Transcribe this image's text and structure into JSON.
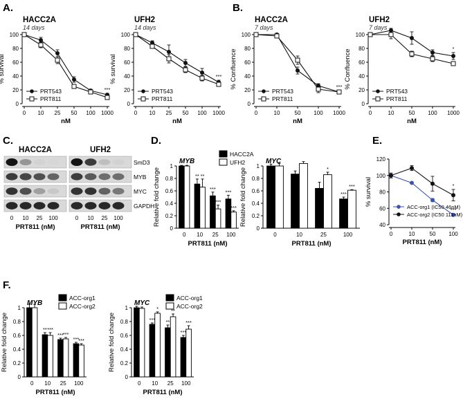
{
  "figure_labels": [
    "A.",
    "B.",
    "C.",
    "D.",
    "E.",
    "F."
  ],
  "chart_data": [
    {
      "id": "A1",
      "type": "line",
      "title": "HACC2A",
      "subtitle": "14 days",
      "xlabel": "nM",
      "ylabel": "% survival",
      "categories": [
        "0",
        "10",
        "25",
        "50",
        "100",
        "1000"
      ],
      "ylim": [
        0,
        100
      ],
      "yticks": [
        0,
        20,
        40,
        60,
        80,
        100
      ],
      "series": [
        {
          "name": "PRT543",
          "marker": "circle",
          "values": [
            100,
            92,
            73,
            35,
            19,
            13
          ],
          "err": [
            2,
            4,
            5,
            4,
            2,
            2
          ]
        },
        {
          "name": "PRT811",
          "marker": "square",
          "values": [
            100,
            85,
            63,
            25,
            17,
            9
          ],
          "err": [
            2,
            4,
            5,
            3,
            2,
            2
          ]
        }
      ],
      "annotations": [
        {
          "category": "1000",
          "text": "***"
        }
      ]
    },
    {
      "id": "A2",
      "type": "line",
      "title": "UFH2",
      "subtitle": "14 days",
      "xlabel": "nM",
      "ylabel": "% survival",
      "categories": [
        "0",
        "10",
        "25",
        "50",
        "100",
        "1000"
      ],
      "ylim": [
        0,
        100
      ],
      "yticks": [
        0,
        20,
        40,
        60,
        80,
        100
      ],
      "series": [
        {
          "name": "PRT543",
          "marker": "circle",
          "values": [
            100,
            88,
            75,
            59,
            45,
            31
          ],
          "err": [
            2,
            3,
            10,
            5,
            6,
            3
          ]
        },
        {
          "name": "PRT811",
          "marker": "square",
          "values": [
            100,
            83,
            65,
            49,
            37,
            28
          ],
          "err": [
            2,
            3,
            6,
            4,
            4,
            3
          ]
        }
      ],
      "annotations": [
        {
          "category": "1000",
          "text": "***"
        }
      ]
    },
    {
      "id": "B1",
      "type": "line",
      "title": "HACC2A",
      "subtitle": "7 days",
      "xlabel": "nM",
      "ylabel": "% Confluence",
      "categories": [
        "0",
        "10",
        "50",
        "100",
        "1000"
      ],
      "ylim": [
        0,
        100
      ],
      "yticks": [
        0,
        20,
        40,
        60,
        80,
        100
      ],
      "series": [
        {
          "name": "PRT543",
          "marker": "circle",
          "values": [
            100,
            100,
            48,
            26,
            17
          ],
          "err": [
            2,
            2,
            5,
            3,
            2
          ]
        },
        {
          "name": "PRT811",
          "marker": "square",
          "values": [
            100,
            98,
            63,
            21,
            17
          ],
          "err": [
            2,
            2,
            6,
            5,
            2
          ]
        }
      ],
      "annotations": [
        {
          "category": "1000",
          "text": "***"
        }
      ]
    },
    {
      "id": "B2",
      "type": "line",
      "title": "UFH2",
      "subtitle": "7 days",
      "xlabel": "nM",
      "ylabel": "% Confluence",
      "categories": [
        "0",
        "10",
        "50",
        "100",
        "1000"
      ],
      "ylim": [
        0,
        100
      ],
      "yticks": [
        0,
        20,
        40,
        60,
        80,
        100
      ],
      "series": [
        {
          "name": "PRT543",
          "marker": "circle",
          "values": [
            100,
            106,
            95,
            74,
            69
          ],
          "err": [
            2,
            3,
            9,
            4,
            5
          ]
        },
        {
          "name": "PRT811",
          "marker": "square",
          "values": [
            100,
            100,
            72,
            65,
            58
          ],
          "err": [
            2,
            6,
            4,
            4,
            3
          ]
        }
      ],
      "annotations": [
        {
          "category": "1000",
          "text": "*"
        }
      ]
    },
    {
      "id": "D1",
      "type": "bar",
      "gene": "MYB",
      "xlabel": "PRT811 (nM)",
      "ylabel": "Relative fold change",
      "categories": [
        "0",
        "10",
        "25",
        "100"
      ],
      "ylim": [
        0,
        1.0
      ],
      "yticks": [
        0,
        0.2,
        0.4,
        0.6,
        0.8,
        1.0
      ],
      "series": [
        {
          "name": "HACC2A",
          "fill": "black",
          "values": [
            1.0,
            0.71,
            0.52,
            0.47
          ],
          "err": [
            0.01,
            0.08,
            0.06,
            0.06
          ]
        },
        {
          "name": "UFH2",
          "fill": "white",
          "values": [
            1.0,
            0.66,
            0.31,
            0.26
          ],
          "err": [
            0.01,
            0.13,
            0.06,
            0.02
          ]
        }
      ],
      "annotations": [
        {
          "category": "10",
          "series": 0,
          "text": "**"
        },
        {
          "category": "10",
          "series": 1,
          "text": "**"
        },
        {
          "category": "25",
          "series": 0,
          "text": "***"
        },
        {
          "category": "25",
          "series": 1,
          "text": "***"
        },
        {
          "category": "100",
          "series": 0,
          "text": "***"
        },
        {
          "category": "100",
          "series": 1,
          "text": "***"
        }
      ]
    },
    {
      "id": "D2",
      "type": "bar",
      "gene": "MYC",
      "xlabel": "PRT811 (nM)",
      "ylabel": "Relative fold change",
      "categories": [
        "0",
        "10",
        "25",
        "100"
      ],
      "ylim": [
        0,
        1.0
      ],
      "yticks": [
        0,
        0.2,
        0.4,
        0.6,
        0.8,
        1.0
      ],
      "series": [
        {
          "name": "HACC2A",
          "fill": "black",
          "values": [
            1.0,
            0.87,
            0.64,
            0.47
          ],
          "err": [
            0.03,
            0.05,
            0.1,
            0.03
          ]
        },
        {
          "name": "UFH2",
          "fill": "white",
          "values": [
            1.0,
            1.04,
            0.86,
            0.61
          ],
          "err": [
            0.04,
            0.03,
            0.04,
            0.01
          ]
        }
      ],
      "annotations": [
        {
          "category": "25",
          "series": 1,
          "text": "*"
        },
        {
          "category": "100",
          "series": 0,
          "text": "***"
        },
        {
          "category": "100",
          "series": 1,
          "text": "***"
        }
      ]
    },
    {
      "id": "E",
      "type": "line",
      "xlabel": "PRT811 (nM)",
      "ylabel": "% survival",
      "categories": [
        "0",
        "10",
        "50",
        "100"
      ],
      "ylim": [
        40,
        120
      ],
      "yticks": [
        40,
        60,
        80,
        100,
        120
      ],
      "series": [
        {
          "name": "ACC-org1 (IC50 46nM)",
          "color": "#3a52b0",
          "marker": "circle",
          "values": [
            100,
            91,
            70,
            52
          ],
          "err": [
            1,
            1,
            2,
            1
          ]
        },
        {
          "name": "ACC-org2 (IC50 111nM)",
          "color": "#111111",
          "marker": "circle",
          "values": [
            100,
            109,
            90,
            76
          ],
          "err": [
            3,
            3,
            9,
            7
          ]
        }
      ],
      "annotations": [
        {
          "category": "100",
          "series": 1,
          "text": "*"
        },
        {
          "category": "100",
          "series": 0,
          "text": "***"
        }
      ]
    },
    {
      "id": "F1",
      "type": "bar",
      "gene": "MYB",
      "xlabel": "PRT811 (nM)",
      "ylabel": "Relative fold change",
      "categories": [
        "0",
        "10",
        "25",
        "100"
      ],
      "ylim": [
        0,
        1.0
      ],
      "yticks": [
        0,
        0.2,
        0.4,
        0.6,
        0.8,
        1.0
      ],
      "series": [
        {
          "name": "ACC-org1",
          "fill": "black",
          "values": [
            1.0,
            0.61,
            0.54,
            0.48
          ],
          "err": [
            0.05,
            0.03,
            0.02,
            0.02
          ]
        },
        {
          "name": "ACC-org2",
          "fill": "white",
          "values": [
            1.0,
            0.6,
            0.55,
            0.46
          ],
          "err": [
            0.05,
            0.04,
            0.02,
            0.02
          ]
        }
      ],
      "annotations": [
        {
          "category": "10",
          "series": 0,
          "text": "**"
        },
        {
          "category": "10",
          "series": 1,
          "text": "***"
        },
        {
          "category": "25",
          "series": 0,
          "text": "***"
        },
        {
          "category": "25",
          "series": 1,
          "text": "***"
        },
        {
          "category": "100",
          "series": 0,
          "text": "***"
        },
        {
          "category": "100",
          "series": 1,
          "text": "***"
        }
      ]
    },
    {
      "id": "F2",
      "type": "bar",
      "gene": "MYC",
      "xlabel": "PRT811 (nM)",
      "ylabel": "Relative fold change",
      "categories": [
        "0",
        "10",
        "25",
        "100"
      ],
      "ylim": [
        0,
        1.0
      ],
      "yticks": [
        0,
        0.2,
        0.4,
        0.6,
        0.8,
        1.0
      ],
      "series": [
        {
          "name": "ACC-org1",
          "fill": "black",
          "values": [
            1.0,
            0.76,
            0.71,
            0.57
          ],
          "err": [
            0.02,
            0.02,
            0.04,
            0.03
          ]
        },
        {
          "name": "ACC-org2",
          "fill": "white",
          "values": [
            0.99,
            0.92,
            0.87,
            0.69
          ],
          "err": [
            0.02,
            0.02,
            0.04,
            0.05
          ]
        }
      ],
      "annotations": [
        {
          "category": "10",
          "series": 0,
          "text": "***"
        },
        {
          "category": "10",
          "series": 1,
          "text": "*"
        },
        {
          "category": "25",
          "series": 0,
          "text": "**"
        },
        {
          "category": "25",
          "series": 1,
          "text": "**"
        },
        {
          "category": "100",
          "series": 0,
          "text": "***"
        },
        {
          "category": "100",
          "series": 1,
          "text": "***"
        }
      ]
    }
  ],
  "blot": {
    "cell_lines": [
      "HACC2A",
      "UFH2"
    ],
    "proteins": [
      "SmD3",
      "MYB",
      "MYC",
      "GAPDH"
    ],
    "lanes": [
      "0",
      "10",
      "25",
      "100"
    ],
    "xlabel": "PRT811 (nM)",
    "intensity": {
      "HACC2A": [
        [
          1.0,
          0.35,
          0.05,
          0.03
        ],
        [
          0.8,
          0.75,
          0.7,
          0.6
        ],
        [
          0.85,
          0.7,
          0.3,
          0.1
        ],
        [
          0.9,
          0.9,
          0.9,
          0.9
        ]
      ],
      "UFH2": [
        [
          1.0,
          0.8,
          0.15,
          0.05
        ],
        [
          0.8,
          0.65,
          0.55,
          0.55
        ],
        [
          0.85,
          0.85,
          0.6,
          0.5
        ],
        [
          0.9,
          0.9,
          0.9,
          0.9
        ]
      ]
    }
  }
}
